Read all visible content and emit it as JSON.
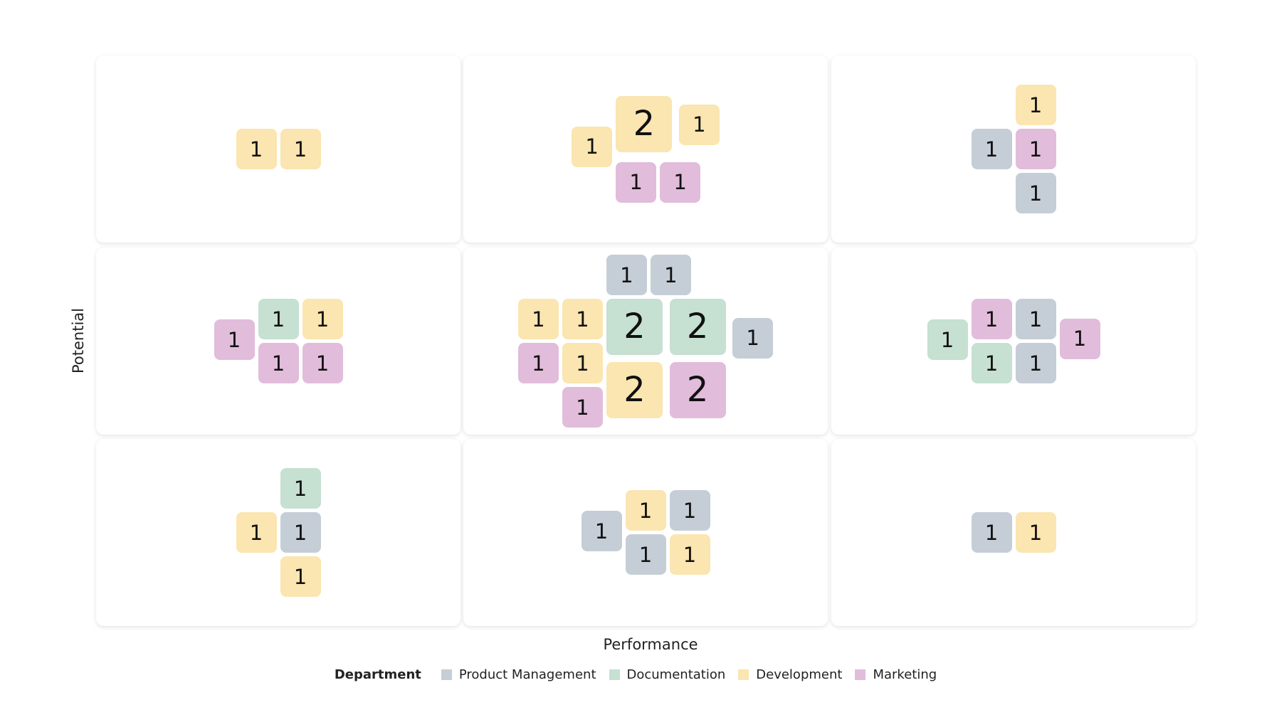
{
  "chart_data": {
    "type": "table",
    "x_axis_label": "Performance",
    "y_axis_label": "Potential",
    "legend": {
      "title": "Department",
      "entries": [
        {
          "key": "pm",
          "label": "Product Management",
          "color": "#c5ced6"
        },
        {
          "key": "doc",
          "label": "Documentation",
          "color": "#c6e0d1"
        },
        {
          "key": "dev",
          "label": "Development",
          "color": "#fbe5b0"
        },
        {
          "key": "mkt",
          "label": "Marketing",
          "color": "#e2bcdb"
        }
      ]
    },
    "grid": [
      {
        "row": 0,
        "col": 0,
        "tiles": [
          {
            "dept": "dev",
            "value": 1,
            "gx": 0,
            "gy": 0
          },
          {
            "dept": "dev",
            "value": 1,
            "gx": 1,
            "gy": 0
          }
        ]
      },
      {
        "row": 0,
        "col": 1,
        "tiles": [
          {
            "dept": "dev",
            "value": 1,
            "gx": 0,
            "gy": 0.2
          },
          {
            "dept": "dev",
            "value": 2,
            "gx": 1,
            "gy": -0.5,
            "size": 1.36
          },
          {
            "dept": "dev",
            "value": 1,
            "gx": 2.43,
            "gy": -0.3
          },
          {
            "dept": "mkt",
            "value": 1,
            "gx": 1,
            "gy": 1
          },
          {
            "dept": "mkt",
            "value": 1,
            "gx": 2,
            "gy": 1
          }
        ]
      },
      {
        "row": 0,
        "col": 2,
        "tiles": [
          {
            "dept": "dev",
            "value": 1,
            "gx": 1,
            "gy": -1
          },
          {
            "dept": "pm",
            "value": 1,
            "gx": 0,
            "gy": 0
          },
          {
            "dept": "mkt",
            "value": 1,
            "gx": 1,
            "gy": 0
          },
          {
            "dept": "pm",
            "value": 1,
            "gx": 1,
            "gy": 1
          }
        ]
      },
      {
        "row": 1,
        "col": 0,
        "tiles": [
          {
            "dept": "mkt",
            "value": 1,
            "gx": 0,
            "gy": 0.47
          },
          {
            "dept": "doc",
            "value": 1,
            "gx": 1,
            "gy": 0
          },
          {
            "dept": "dev",
            "value": 1,
            "gx": 2,
            "gy": 0
          },
          {
            "dept": "mkt",
            "value": 1,
            "gx": 1,
            "gy": 1
          },
          {
            "dept": "mkt",
            "value": 1,
            "gx": 2,
            "gy": 1
          }
        ]
      },
      {
        "row": 1,
        "col": 1,
        "tiles": [
          {
            "dept": "pm",
            "value": 1,
            "gx": 2,
            "gy": -1
          },
          {
            "dept": "pm",
            "value": 1,
            "gx": 3,
            "gy": -1
          },
          {
            "dept": "dev",
            "value": 1,
            "gx": 0,
            "gy": 0
          },
          {
            "dept": "dev",
            "value": 1,
            "gx": 1,
            "gy": 0
          },
          {
            "dept": "mkt",
            "value": 1,
            "gx": 0,
            "gy": 1
          },
          {
            "dept": "dev",
            "value": 1,
            "gx": 1,
            "gy": 1
          },
          {
            "dept": "mkt",
            "value": 1,
            "gx": 1,
            "gy": 2
          },
          {
            "dept": "doc",
            "value": 2,
            "gx": 2,
            "gy": 0,
            "size": 1.36
          },
          {
            "dept": "doc",
            "value": 2,
            "gx": 3.43,
            "gy": 0,
            "size": 1.36
          },
          {
            "dept": "dev",
            "value": 2,
            "gx": 2,
            "gy": 1.43,
            "size": 1.36
          },
          {
            "dept": "mkt",
            "value": 2,
            "gx": 3.43,
            "gy": 1.43,
            "size": 1.36
          },
          {
            "dept": "pm",
            "value": 1,
            "gx": 4.86,
            "gy": 0.43
          }
        ]
      },
      {
        "row": 1,
        "col": 2,
        "tiles": [
          {
            "dept": "doc",
            "value": 1,
            "gx": 0,
            "gy": 0.47
          },
          {
            "dept": "mkt",
            "value": 1,
            "gx": 1,
            "gy": 0
          },
          {
            "dept": "pm",
            "value": 1,
            "gx": 2,
            "gy": 0
          },
          {
            "dept": "doc",
            "value": 1,
            "gx": 1,
            "gy": 1
          },
          {
            "dept": "pm",
            "value": 1,
            "gx": 2,
            "gy": 1
          },
          {
            "dept": "mkt",
            "value": 1,
            "gx": 3,
            "gy": 0.45
          }
        ]
      },
      {
        "row": 2,
        "col": 0,
        "tiles": [
          {
            "dept": "doc",
            "value": 1,
            "gx": 1,
            "gy": -1
          },
          {
            "dept": "dev",
            "value": 1,
            "gx": 0,
            "gy": 0
          },
          {
            "dept": "pm",
            "value": 1,
            "gx": 1,
            "gy": 0
          },
          {
            "dept": "dev",
            "value": 1,
            "gx": 1,
            "gy": 1
          }
        ]
      },
      {
        "row": 2,
        "col": 1,
        "tiles": [
          {
            "dept": "pm",
            "value": 1,
            "gx": 0,
            "gy": 0.47
          },
          {
            "dept": "dev",
            "value": 1,
            "gx": 1,
            "gy": 0
          },
          {
            "dept": "pm",
            "value": 1,
            "gx": 2,
            "gy": 0
          },
          {
            "dept": "pm",
            "value": 1,
            "gx": 1,
            "gy": 1
          },
          {
            "dept": "dev",
            "value": 1,
            "gx": 2,
            "gy": 1
          }
        ]
      },
      {
        "row": 2,
        "col": 2,
        "tiles": [
          {
            "dept": "pm",
            "value": 1,
            "gx": 0,
            "gy": 0
          },
          {
            "dept": "dev",
            "value": 1,
            "gx": 1,
            "gy": 0
          }
        ]
      }
    ]
  }
}
